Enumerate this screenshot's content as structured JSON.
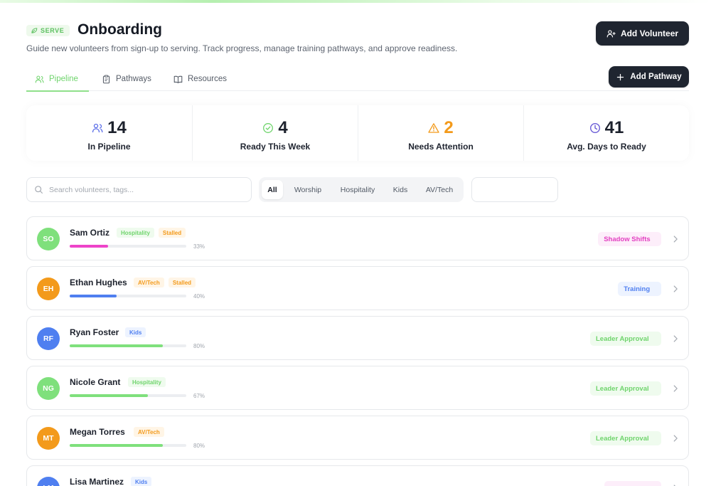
{
  "header": {
    "eyebrow": "SERVE",
    "title": "Onboarding",
    "subtitle": "Guide new volunteers from sign-up to serving. Track progress, manage training pathways, and approve readiness.",
    "add_volunteer": "Add Volunteer",
    "add_pathway": "Add Pathway"
  },
  "tabs": [
    {
      "label": "Pipeline",
      "icon": "users-icon",
      "active": true
    },
    {
      "label": "Pathways",
      "icon": "clipboard-icon",
      "active": false
    },
    {
      "label": "Resources",
      "icon": "book-icon",
      "active": false
    }
  ],
  "stats": [
    {
      "value": "14",
      "label": "In Pipeline",
      "icon": "users-icon",
      "color": "#5b6ee8"
    },
    {
      "value": "4",
      "label": "Ready This Week",
      "icon": "check-circle-icon",
      "color": "#6fd46c"
    },
    {
      "value": "2",
      "label": "Needs Attention",
      "icon": "warning-icon",
      "color": "#f39a1b"
    },
    {
      "value": "41",
      "label": "Avg. Days to Ready",
      "icon": "clock-icon",
      "color": "#6a5cd6"
    }
  ],
  "search": {
    "placeholder": "Search volunteers, tags..."
  },
  "filters": [
    "All",
    "Worship",
    "Hospitality",
    "Kids",
    "AV/Tech"
  ],
  "active_filter": "All",
  "colors": {
    "accent": "#6fd46c",
    "dark_button": "#1f2530",
    "avatar_green": "#7fe07c",
    "avatar_orange": "#f39a1b",
    "avatar_blue": "#4f7ff0",
    "progress_pink": "#ee44c9",
    "progress_blue": "#4f7ff0",
    "progress_green": "#7fe07c"
  },
  "volunteers": [
    {
      "initials": "SO",
      "name": "Sam Ortiz",
      "tags": [
        {
          "text": "Hospitality",
          "kind": "green"
        },
        {
          "text": "Stalled",
          "kind": "orange"
        }
      ],
      "progress": 0.33,
      "pct": "33%",
      "stage": "Shadow Shifts",
      "stage_kind": "pink",
      "avatar": "green",
      "bar": "pink"
    },
    {
      "initials": "EH",
      "name": "Ethan Hughes",
      "tags": [
        {
          "text": "AV/Tech",
          "kind": "orange"
        },
        {
          "text": "Stalled",
          "kind": "orange"
        }
      ],
      "progress": 0.4,
      "pct": "40%",
      "stage": "Training",
      "stage_kind": "blue",
      "avatar": "orange",
      "bar": "blue"
    },
    {
      "initials": "RF",
      "name": "Ryan Foster",
      "tags": [
        {
          "text": "Kids",
          "kind": "blue"
        }
      ],
      "progress": 0.8,
      "pct": "80%",
      "stage": "Leader Approval",
      "stage_kind": "green",
      "avatar": "blue",
      "bar": "green"
    },
    {
      "initials": "NG",
      "name": "Nicole Grant",
      "tags": [
        {
          "text": "Hospitality",
          "kind": "green"
        }
      ],
      "progress": 0.67,
      "pct": "67%",
      "stage": "Leader Approval",
      "stage_kind": "green",
      "avatar": "green",
      "bar": "green"
    },
    {
      "initials": "MT",
      "name": "Megan Torres",
      "tags": [
        {
          "text": "AV/Tech",
          "kind": "orange"
        }
      ],
      "progress": 0.8,
      "pct": "80%",
      "stage": "Leader Approval",
      "stage_kind": "green",
      "avatar": "orange",
      "bar": "green"
    },
    {
      "initials": "LM",
      "name": "Lisa Martinez",
      "tags": [
        {
          "text": "Kids",
          "kind": "blue"
        }
      ],
      "progress": 0,
      "pct": "",
      "stage": "",
      "stage_kind": "pink",
      "avatar": "blue",
      "bar": "green"
    }
  ]
}
